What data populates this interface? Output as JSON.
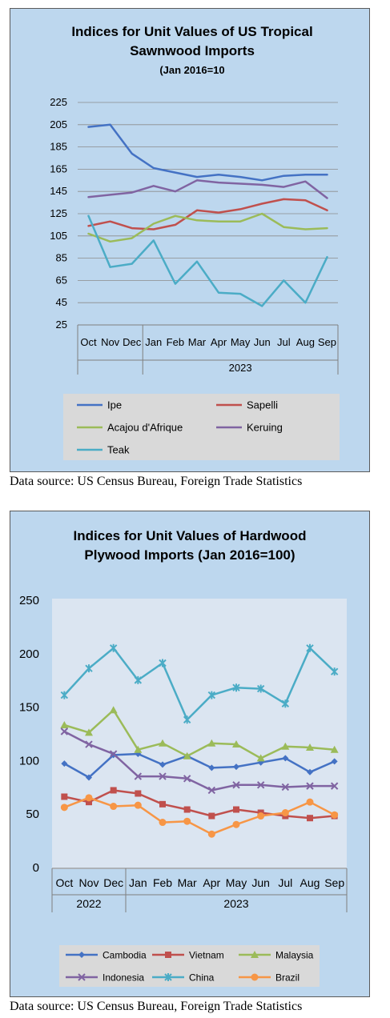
{
  "charts": [
    {
      "type": "line",
      "title_line1": "Indices for Unit Values of US Tropical",
      "title_line2": "Sawnwood Imports",
      "subtitle": "(Jan 2016=10",
      "categories": [
        "Oct",
        "Nov",
        "Dec",
        "Jan",
        "Feb",
        "Mar",
        "Apr",
        "May",
        "Jun",
        "Jul",
        "Aug",
        "Sep"
      ],
      "year_groups": [
        {
          "label": "",
          "start": 0,
          "end": 2
        },
        {
          "label": "2023",
          "start": 3,
          "end": 11
        }
      ],
      "ylim": [
        25,
        225
      ],
      "yticks": [
        25,
        45,
        65,
        85,
        105,
        125,
        145,
        165,
        185,
        205,
        225
      ],
      "grid": true,
      "legend_placement": "bottom",
      "markers": false,
      "series": [
        {
          "name": "Ipe",
          "color": "#4472c4",
          "values": [
            203,
            205,
            179,
            166,
            162,
            158,
            160,
            158,
            155,
            159,
            160,
            160
          ]
        },
        {
          "name": "Sapelli",
          "color": "#c0504d",
          "values": [
            114,
            118,
            112,
            111,
            115,
            128,
            126,
            129,
            134,
            138,
            137,
            128
          ]
        },
        {
          "name": "Acajou d'Afrique",
          "color": "#9bbb59",
          "values": [
            107,
            100,
            103,
            116,
            123,
            119,
            118,
            118,
            125,
            113,
            111,
            112
          ]
        },
        {
          "name": "Keruing",
          "color": "#8064a2",
          "values": [
            140,
            142,
            144,
            150,
            145,
            155,
            153,
            152,
            151,
            149,
            154,
            139
          ]
        },
        {
          "name": "Teak",
          "color": "#4bacc6",
          "values": [
            123,
            77,
            80,
            101,
            62,
            82,
            54,
            53,
            42,
            65,
            45,
            86
          ]
        }
      ],
      "source": "Data source: US Census Bureau, Foreign Trade Statistics"
    },
    {
      "type": "line",
      "title_line1": "Indices for Unit Values of Hardwood",
      "title_line2": "Plywood Imports (Jan 2016=100)",
      "categories": [
        "Oct",
        "Nov",
        "Dec",
        "Jan",
        "Feb",
        "Mar",
        "Apr",
        "May",
        "Jun",
        "Jul",
        "Aug",
        "Sep"
      ],
      "year_groups": [
        {
          "label": "2022",
          "start": 0,
          "end": 2
        },
        {
          "label": "2023",
          "start": 3,
          "end": 11
        }
      ],
      "ylim": [
        0,
        250
      ],
      "yticks": [
        0,
        50,
        100,
        150,
        200,
        250
      ],
      "grid": false,
      "legend_placement": "bottom",
      "markers": true,
      "series": [
        {
          "name": "Cambodia",
          "color": "#4472c4",
          "marker": "diamond",
          "values": [
            98,
            85,
            106,
            107,
            97,
            105,
            94,
            95,
            99,
            103,
            90,
            100
          ]
        },
        {
          "name": "Vietnam",
          "color": "#c0504d",
          "marker": "square",
          "values": [
            67,
            62,
            73,
            70,
            60,
            55,
            49,
            55,
            52,
            49,
            47,
            49
          ]
        },
        {
          "name": "Malaysia",
          "color": "#9bbb59",
          "marker": "triangle",
          "values": [
            134,
            127,
            148,
            111,
            117,
            105,
            117,
            116,
            103,
            114,
            113,
            111
          ]
        },
        {
          "name": "Indonesia",
          "color": "#8064a2",
          "marker": "x",
          "values": [
            128,
            116,
            107,
            86,
            86,
            84,
            73,
            78,
            78,
            76,
            77,
            77
          ]
        },
        {
          "name": "China",
          "color": "#4bacc6",
          "marker": "star",
          "values": [
            162,
            187,
            206,
            176,
            192,
            139,
            162,
            169,
            168,
            154,
            206,
            184
          ]
        },
        {
          "name": "Brazil",
          "color": "#f79646",
          "marker": "circle",
          "values": [
            57,
            66,
            58,
            59,
            43,
            44,
            32,
            41,
            49,
            52,
            62,
            50
          ]
        }
      ],
      "source": "Data source: US Census Bureau, Foreign Trade Statistics"
    }
  ]
}
